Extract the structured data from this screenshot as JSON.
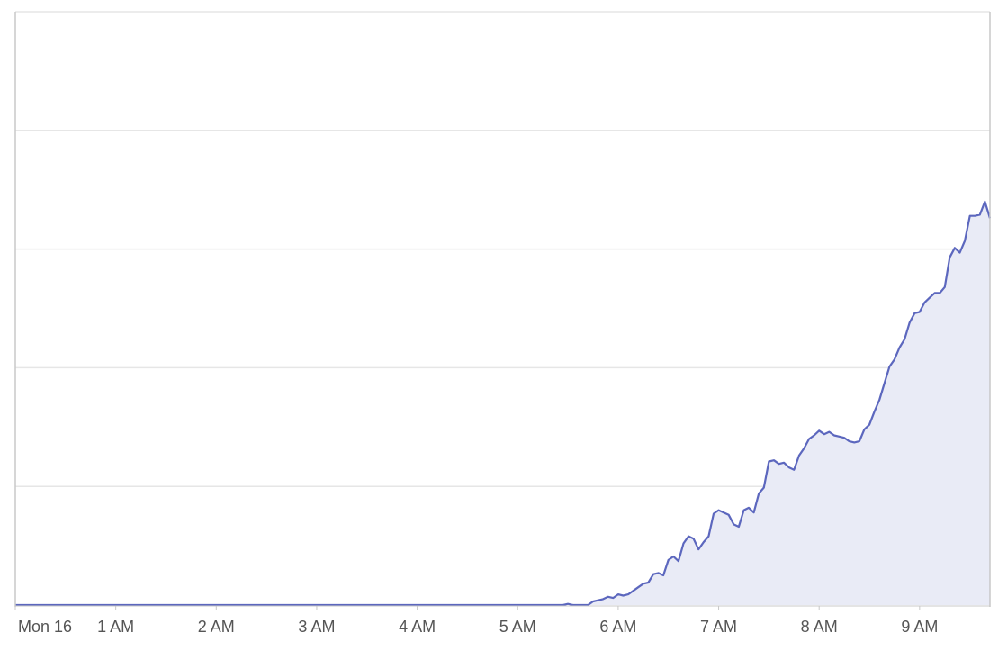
{
  "chart_data": {
    "type": "area",
    "title": "",
    "xlabel": "",
    "ylabel": "",
    "x_unit": "hours since midnight, Mon 16",
    "x_ticks": [
      {
        "x": 0,
        "label": "Mon 16"
      },
      {
        "x": 1,
        "label": "1 AM"
      },
      {
        "x": 2,
        "label": "2 AM"
      },
      {
        "x": 3,
        "label": "3 AM"
      },
      {
        "x": 4,
        "label": "4 AM"
      },
      {
        "x": 5,
        "label": "5 AM"
      },
      {
        "x": 6,
        "label": "6 AM"
      },
      {
        "x": 7,
        "label": "7 AM"
      },
      {
        "x": 8,
        "label": "8 AM"
      },
      {
        "x": 9,
        "label": "9 AM"
      }
    ],
    "y_gridlines": [
      1,
      2,
      3,
      4
    ],
    "ylim": [
      0,
      5
    ],
    "xlim": [
      0,
      9.7
    ],
    "grid": true,
    "series": [
      {
        "color": "#5c67be",
        "fill": "#e9ebf6",
        "points": [
          [
            0,
            0
          ],
          [
            5.45,
            0
          ],
          [
            5.5,
            0.01
          ],
          [
            5.55,
            0
          ],
          [
            5.7,
            0
          ],
          [
            5.75,
            0.03
          ],
          [
            5.8,
            0.04
          ],
          [
            5.85,
            0.05
          ],
          [
            5.9,
            0.07
          ],
          [
            5.95,
            0.06
          ],
          [
            6.0,
            0.09
          ],
          [
            6.05,
            0.08
          ],
          [
            6.1,
            0.09
          ],
          [
            6.15,
            0.12
          ],
          [
            6.2,
            0.15
          ],
          [
            6.25,
            0.18
          ],
          [
            6.3,
            0.19
          ],
          [
            6.35,
            0.26
          ],
          [
            6.4,
            0.27
          ],
          [
            6.45,
            0.25
          ],
          [
            6.5,
            0.38
          ],
          [
            6.55,
            0.41
          ],
          [
            6.6,
            0.37
          ],
          [
            6.65,
            0.52
          ],
          [
            6.7,
            0.58
          ],
          [
            6.75,
            0.56
          ],
          [
            6.8,
            0.47
          ],
          [
            6.85,
            0.53
          ],
          [
            6.9,
            0.58
          ],
          [
            6.95,
            0.77
          ],
          [
            7.0,
            0.8
          ],
          [
            7.05,
            0.78
          ],
          [
            7.1,
            0.76
          ],
          [
            7.15,
            0.68
          ],
          [
            7.2,
            0.66
          ],
          [
            7.25,
            0.8
          ],
          [
            7.3,
            0.82
          ],
          [
            7.35,
            0.78
          ],
          [
            7.4,
            0.94
          ],
          [
            7.45,
            0.99
          ],
          [
            7.5,
            1.21
          ],
          [
            7.55,
            1.22
          ],
          [
            7.6,
            1.19
          ],
          [
            7.65,
            1.2
          ],
          [
            7.7,
            1.16
          ],
          [
            7.75,
            1.14
          ],
          [
            7.8,
            1.26
          ],
          [
            7.85,
            1.32
          ],
          [
            7.9,
            1.4
          ],
          [
            7.95,
            1.43
          ],
          [
            8.0,
            1.47
          ],
          [
            8.05,
            1.44
          ],
          [
            8.1,
            1.46
          ],
          [
            8.15,
            1.43
          ],
          [
            8.2,
            1.42
          ],
          [
            8.25,
            1.41
          ],
          [
            8.3,
            1.38
          ],
          [
            8.35,
            1.37
          ],
          [
            8.4,
            1.38
          ],
          [
            8.45,
            1.48
          ],
          [
            8.5,
            1.52
          ],
          [
            8.55,
            1.63
          ],
          [
            8.6,
            1.73
          ],
          [
            8.65,
            1.87
          ],
          [
            8.7,
            2.01
          ],
          [
            8.75,
            2.07
          ],
          [
            8.8,
            2.17
          ],
          [
            8.85,
            2.24
          ],
          [
            8.9,
            2.38
          ],
          [
            8.95,
            2.46
          ],
          [
            9.0,
            2.47
          ],
          [
            9.05,
            2.55
          ],
          [
            9.1,
            2.59
          ],
          [
            9.15,
            2.63
          ],
          [
            9.2,
            2.63
          ],
          [
            9.25,
            2.68
          ],
          [
            9.3,
            2.93
          ],
          [
            9.35,
            3.01
          ],
          [
            9.4,
            2.97
          ],
          [
            9.45,
            3.07
          ],
          [
            9.5,
            3.28
          ],
          [
            9.55,
            3.28
          ],
          [
            9.6,
            3.29
          ],
          [
            9.65,
            3.4
          ],
          [
            9.7,
            3.26
          ]
        ]
      }
    ]
  }
}
